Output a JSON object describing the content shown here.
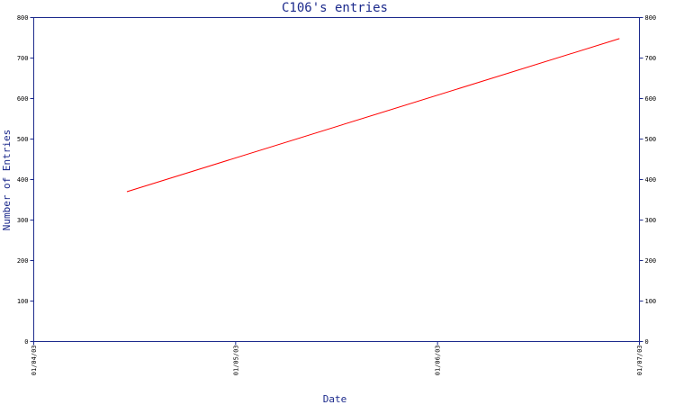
{
  "chart_data": {
    "type": "line",
    "title": "C106's entries",
    "xlabel": "Date",
    "ylabel": "Number of Entries",
    "x_ticks": [
      "01/04/03",
      "01/05/03",
      "01/06/03",
      "01/07/03"
    ],
    "y_ticks": [
      "0",
      "100",
      "200",
      "300",
      "400",
      "500",
      "600",
      "700",
      "800"
    ],
    "ylim": [
      0,
      800
    ],
    "xlim": [
      "2003-04-01",
      "2003-07-01"
    ],
    "series": [
      {
        "color": "#ff0000",
        "points": [
          {
            "x": "2003-04-15",
            "y": 370
          },
          {
            "x": "2003-06-28",
            "y": 748
          }
        ]
      }
    ],
    "grid": false,
    "colors": {
      "axis": "#1c2a8c",
      "label": "#1c2a8c",
      "tick": "#000000"
    }
  }
}
